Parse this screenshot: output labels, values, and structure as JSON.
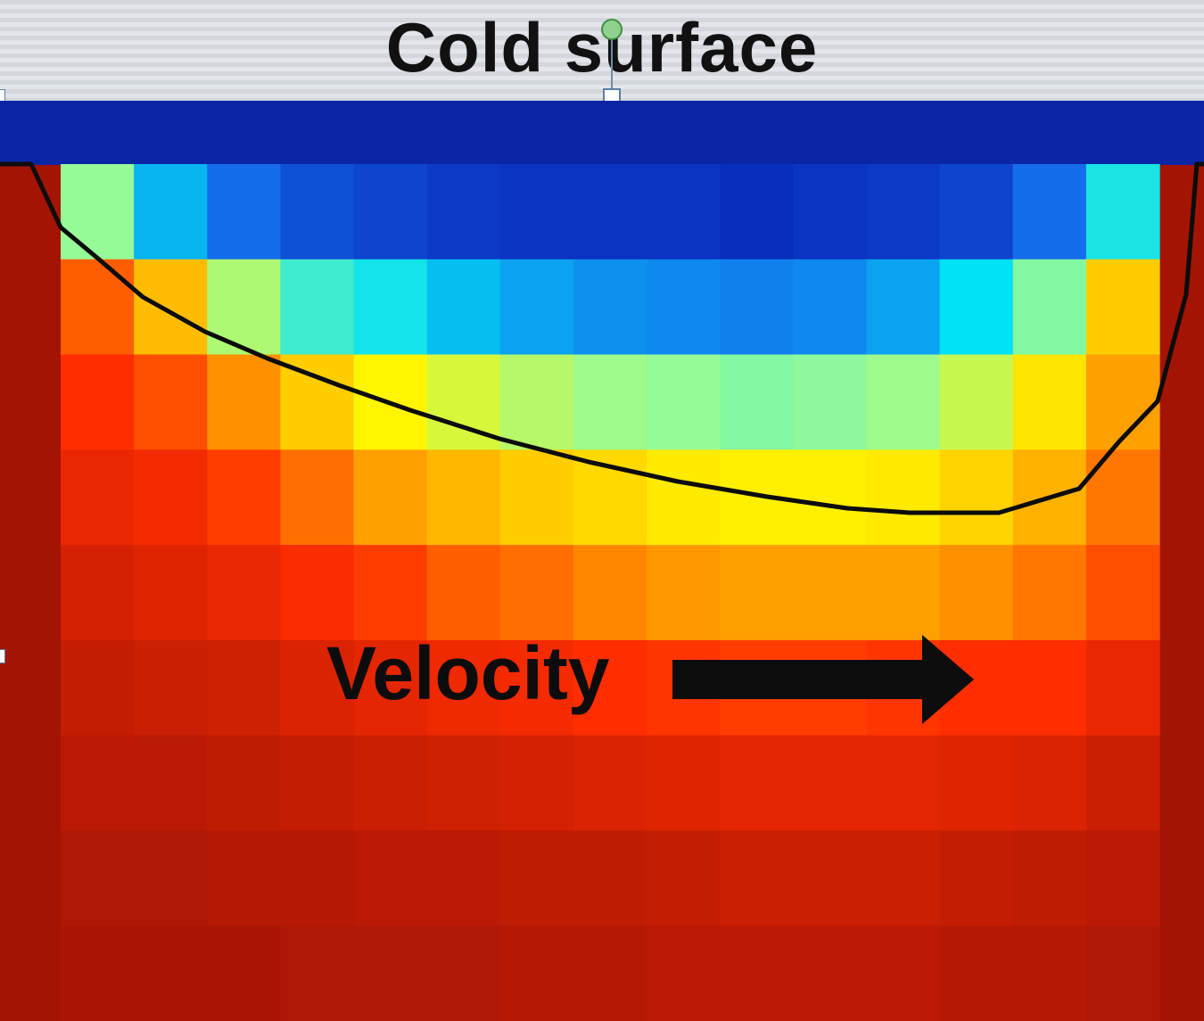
{
  "header": {
    "title": "Cold surface"
  },
  "annotation": {
    "label": "Velocity"
  },
  "colors": {
    "cold_band": "#0a25a6",
    "hot_background": "#a41404",
    "front_line": "#0c0c0c",
    "arrow": "#0c0c0c",
    "header_background": "#d9dde2"
  },
  "heatmap": {
    "rows": 9,
    "cols": 15,
    "values": [
      [
        0.42,
        0.2,
        0.12,
        0.07,
        0.05,
        0.03,
        0.02,
        0.02,
        0.02,
        0.01,
        0.02,
        0.03,
        0.05,
        0.12,
        0.28
      ],
      [
        0.78,
        0.65,
        0.45,
        0.32,
        0.27,
        0.21,
        0.18,
        0.16,
        0.15,
        0.14,
        0.15,
        0.18,
        0.25,
        0.4,
        0.62
      ],
      [
        0.84,
        0.8,
        0.72,
        0.62,
        0.55,
        0.5,
        0.46,
        0.43,
        0.42,
        0.4,
        0.41,
        0.43,
        0.48,
        0.58,
        0.7
      ],
      [
        0.88,
        0.86,
        0.82,
        0.76,
        0.7,
        0.66,
        0.62,
        0.6,
        0.57,
        0.56,
        0.56,
        0.57,
        0.61,
        0.67,
        0.75
      ],
      [
        0.92,
        0.9,
        0.88,
        0.85,
        0.82,
        0.78,
        0.76,
        0.73,
        0.71,
        0.7,
        0.7,
        0.7,
        0.72,
        0.75,
        0.8
      ],
      [
        0.95,
        0.94,
        0.93,
        0.91,
        0.89,
        0.87,
        0.86,
        0.84,
        0.83,
        0.82,
        0.82,
        0.83,
        0.84,
        0.84,
        0.88
      ],
      [
        0.97,
        0.97,
        0.96,
        0.95,
        0.94,
        0.93,
        0.92,
        0.91,
        0.9,
        0.89,
        0.89,
        0.89,
        0.9,
        0.91,
        0.94
      ],
      [
        0.99,
        0.99,
        0.98,
        0.98,
        0.97,
        0.97,
        0.96,
        0.96,
        0.95,
        0.94,
        0.94,
        0.94,
        0.95,
        0.96,
        0.97
      ],
      [
        1.0,
        1.0,
        1.0,
        0.99,
        0.99,
        0.99,
        0.98,
        0.98,
        0.97,
        0.97,
        0.97,
        0.97,
        0.98,
        0.98,
        0.99
      ]
    ]
  }
}
